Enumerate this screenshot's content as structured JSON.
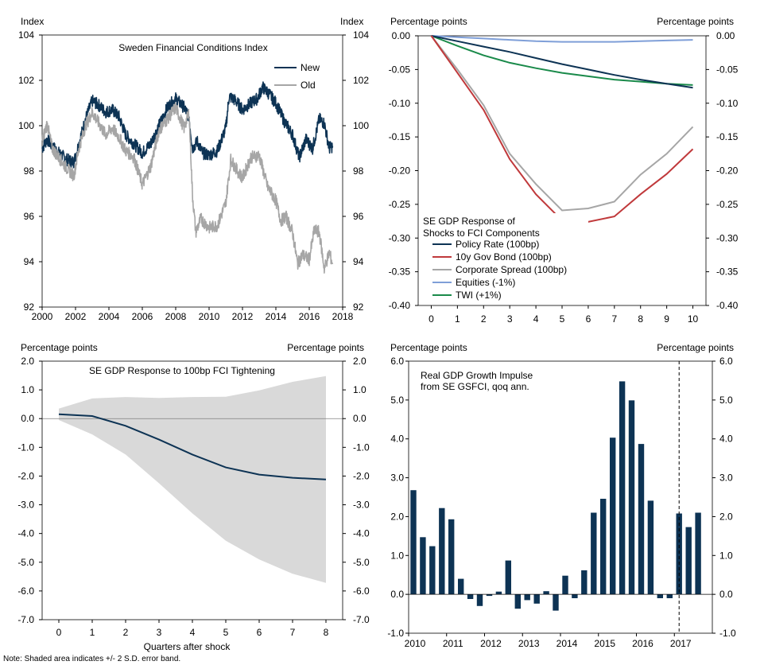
{
  "note": "Note: Shaded area indicates +/- 2 S.D. error band.",
  "colors": {
    "navy": "#0d3354",
    "gray": "#a6a6a6",
    "red": "#c0393b",
    "lightblue": "#7f9fd8",
    "green": "#1a8a4a",
    "band": "#d9d9d9"
  },
  "chart_data": [
    {
      "id": "fci",
      "type": "line",
      "title": "Sweden Financial Conditions Index",
      "yunit_left": "Index",
      "yunit_right": "Index",
      "xlim": [
        2000,
        2018
      ],
      "ylim": [
        92,
        104
      ],
      "xticks": [
        2000,
        2002,
        2004,
        2006,
        2008,
        2010,
        2012,
        2014,
        2016,
        2018
      ],
      "yticks": [
        92,
        94,
        96,
        98,
        100,
        102,
        104
      ],
      "legend": [
        "New",
        "Old"
      ],
      "series": [
        {
          "name": "New",
          "color_key": "navy",
          "x": [
            2000,
            2000.3,
            2000.6,
            2001,
            2001.5,
            2001.9,
            2002.2,
            2002.6,
            2003,
            2003.4,
            2003.8,
            2004.2,
            2004.6,
            2005,
            2005.5,
            2006,
            2006.5,
            2007,
            2007.5,
            2008,
            2008.5,
            2008.8,
            2009.0,
            2009.3,
            2009.6,
            2010,
            2010.5,
            2011,
            2011.2,
            2011.6,
            2012,
            2012.5,
            2012.9,
            2013.2,
            2013.6,
            2014,
            2014.5,
            2015,
            2015.4,
            2015.8,
            2016.2,
            2016.6,
            2016.9,
            2017.2,
            2017.4
          ],
          "values": [
            99.0,
            99.4,
            99.1,
            98.8,
            98.5,
            98.4,
            99.2,
            100.3,
            101.1,
            100.9,
            100.6,
            100.7,
            100.4,
            99.6,
            99.2,
            98.8,
            99.2,
            100.0,
            100.8,
            101.2,
            100.8,
            100.4,
            99.0,
            99.3,
            98.8,
            98.7,
            98.9,
            99.9,
            101.3,
            101.1,
            100.7,
            101.0,
            101.2,
            101.7,
            101.4,
            101.0,
            100.2,
            99.6,
            98.6,
            99.4,
            99.0,
            100.3,
            100.1,
            99.0,
            99.1
          ]
        },
        {
          "name": "Old",
          "color_key": "gray",
          "x": [
            2000,
            2000.3,
            2000.6,
            2001,
            2001.5,
            2001.9,
            2002.2,
            2002.6,
            2003,
            2003.4,
            2003.8,
            2004.2,
            2004.6,
            2005,
            2005.5,
            2006,
            2006.5,
            2007,
            2007.5,
            2008,
            2008.5,
            2008.8,
            2009.0,
            2009.2,
            2009.5,
            2010,
            2010.5,
            2011,
            2011.3,
            2011.7,
            2012,
            2012.5,
            2013,
            2013.5,
            2014,
            2014.3,
            2014.6,
            2015,
            2015.3,
            2015.6,
            2016,
            2016.3,
            2016.6,
            2016.9,
            2017.2,
            2017.4
          ],
          "values": [
            99.3,
            100.1,
            99.0,
            98.6,
            98.1,
            97.8,
            99.0,
            100.0,
            100.6,
            100.1,
            99.6,
            99.9,
            99.5,
            98.9,
            98.6,
            97.4,
            98.2,
            99.8,
            100.3,
            100.8,
            99.9,
            100.6,
            97.0,
            95.3,
            95.9,
            95.5,
            95.6,
            96.6,
            98.5,
            98.0,
            97.7,
            98.6,
            98.7,
            97.3,
            96.7,
            95.8,
            96.0,
            95.3,
            93.9,
            94.3,
            94.1,
            95.4,
            95.3,
            93.7,
            94.4,
            93.9
          ]
        }
      ]
    },
    {
      "id": "components",
      "type": "line",
      "title": "SE GDP Response of Shocks to FCI Components",
      "title_lines": [
        "SE GDP Response of",
        "Shocks to FCI Components"
      ],
      "yunit_left": "Percentage points",
      "yunit_right": "Percentage points",
      "x": [
        0,
        1,
        2,
        3,
        4,
        5,
        6,
        7,
        8,
        9,
        10
      ],
      "xticks": [
        0,
        1,
        2,
        3,
        4,
        5,
        6,
        7,
        8,
        9,
        10
      ],
      "ylim": [
        -0.4,
        0.0
      ],
      "yticks": [
        -0.4,
        -0.35,
        -0.3,
        -0.25,
        -0.2,
        -0.15,
        -0.1,
        -0.05,
        0.0
      ],
      "ytick_labels": [
        "-0.40",
        "-0.35",
        "-0.30",
        "-0.25",
        "-0.20",
        "-0.15",
        "-0.10",
        "-0.05",
        "0.00"
      ],
      "series": [
        {
          "name": "Policy Rate (100bp)",
          "color_key": "navy",
          "values": [
            0.0,
            -0.008,
            -0.016,
            -0.024,
            -0.033,
            -0.042,
            -0.05,
            -0.058,
            -0.065,
            -0.071,
            -0.077
          ]
        },
        {
          "name": "10y Gov Bond (100bp)",
          "color_key": "red",
          "values": [
            0.0,
            -0.055,
            -0.11,
            -0.183,
            -0.235,
            -0.274,
            -0.276,
            -0.268,
            -0.235,
            -0.205,
            -0.168
          ]
        },
        {
          "name": "Corporate Spread (100bp)",
          "color_key": "gray",
          "values": [
            0.0,
            -0.05,
            -0.103,
            -0.175,
            -0.22,
            -0.259,
            -0.256,
            -0.246,
            -0.206,
            -0.175,
            -0.135
          ]
        },
        {
          "name": "Equities (-1%)",
          "color_key": "lightblue",
          "values": [
            0.0,
            -0.002,
            -0.004,
            -0.006,
            -0.008,
            -0.009,
            -0.009,
            -0.009,
            -0.008,
            -0.007,
            -0.006
          ]
        },
        {
          "name": "TWI (+1%)",
          "color_key": "green",
          "values": [
            0.0,
            -0.015,
            -0.029,
            -0.04,
            -0.048,
            -0.055,
            -0.06,
            -0.065,
            -0.068,
            -0.071,
            -0.073
          ]
        }
      ]
    },
    {
      "id": "fci_tightening",
      "type": "area",
      "title": "SE GDP Response to 100bp FCI Tightening",
      "yunit_left": "Percentage points",
      "yunit_right": "Percentage points",
      "xlabel": "Quarters after shock",
      "x": [
        0,
        1,
        2,
        3,
        4,
        5,
        6,
        7,
        8
      ],
      "xticks": [
        0,
        1,
        2,
        3,
        4,
        5,
        6,
        7,
        8
      ],
      "ylim": [
        -7.0,
        2.0
      ],
      "yticks": [
        -7.0,
        -6.0,
        -5.0,
        -4.0,
        -3.0,
        -2.0,
        -1.0,
        0.0,
        1.0,
        2.0
      ],
      "ytick_labels": [
        "-7.0",
        "-6.0",
        "-5.0",
        "-4.0",
        "-3.0",
        "-2.0",
        "-1.0",
        "0.0",
        "1.0",
        "2.0"
      ],
      "upper": [
        0.35,
        0.7,
        0.75,
        0.72,
        0.75,
        0.76,
        0.98,
        1.28,
        1.48
      ],
      "lower": [
        -0.05,
        -0.55,
        -1.25,
        -2.25,
        -3.3,
        -4.25,
        -4.9,
        -5.4,
        -5.72
      ],
      "values": [
        0.15,
        0.09,
        -0.25,
        -0.73,
        -1.25,
        -1.7,
        -1.95,
        -2.06,
        -2.12
      ]
    },
    {
      "id": "impulse",
      "type": "bar",
      "title": "Real GDP Growth Impulse from SE GSFCI, qoq ann.",
      "title_lines": [
        "Real GDP Growth Impulse",
        "from SE GSFCI, qoq ann."
      ],
      "yunit_left": "Percentage points",
      "yunit_right": "Percentage points",
      "xstart": 2010,
      "xend": 2018,
      "xticks": [
        2010,
        2011,
        2012,
        2013,
        2014,
        2015,
        2016,
        2017
      ],
      "ylim": [
        -1.0,
        6.0
      ],
      "yticks": [
        -1.0,
        0.0,
        1.0,
        2.0,
        3.0,
        4.0,
        5.0,
        6.0
      ],
      "ytick_labels": [
        "-1.0",
        "0.0",
        "1.0",
        "2.0",
        "3.0",
        "4.0",
        "5.0",
        "6.0"
      ],
      "vline_at": 2017.125,
      "values": [
        2.68,
        1.47,
        1.24,
        2.22,
        1.93,
        0.4,
        -0.12,
        -0.3,
        -0.04,
        0.07,
        0.87,
        -0.37,
        -0.15,
        -0.24,
        0.08,
        -0.42,
        0.48,
        -0.1,
        0.62,
        2.1,
        2.46,
        4.03,
        5.48,
        4.99,
        3.87,
        2.41,
        -0.1,
        -0.1,
        2.08,
        1.73,
        2.1
      ]
    }
  ]
}
